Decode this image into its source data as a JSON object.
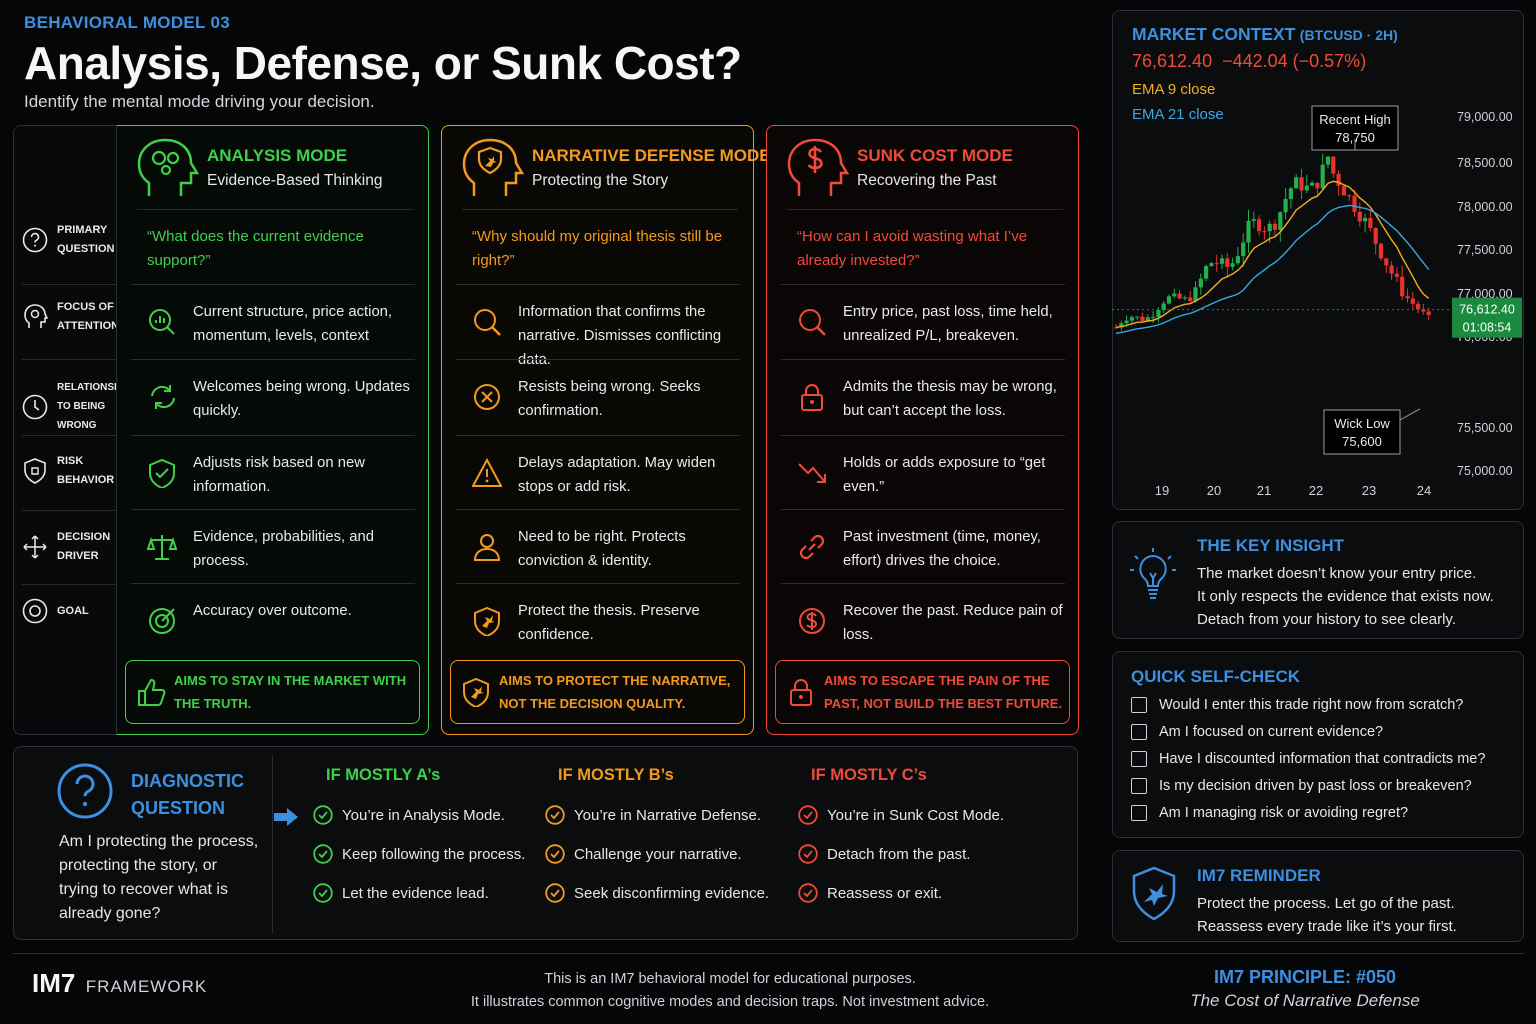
{
  "header": {
    "eyebrow": "BEHAVIORAL MODEL 03",
    "title": "Analysis, Defense, or Sunk Cost?",
    "subtitle": "Identify the mental mode driving your decision."
  },
  "row_labels": [
    {
      "text": "PRIMARY QUESTION",
      "icon": "question-circle-icon"
    },
    {
      "text": "FOCUS OF ATTENTION",
      "icon": "focus-head-icon"
    },
    {
      "text": "RELATIONSHIP TO BEING WRONG",
      "icon": "clock-icon"
    },
    {
      "text": "RISK BEHAVIOR",
      "icon": "shield-icon"
    },
    {
      "text": "DECISION DRIVER",
      "icon": "move-arrows-icon"
    },
    {
      "text": "GOAL",
      "icon": "target-icon"
    }
  ],
  "modes": [
    {
      "title": "ANALYSIS MODE",
      "subtitle": "Evidence-Based Thinking",
      "question": "“What does the current evidence support?”",
      "color": "#3fd04a",
      "rows": [
        "Current structure, price action, momentum, levels, context",
        "Welcomes being wrong. Updates quickly.",
        "Adjusts risk based on new information.",
        "Evidence, probabilities, and process.",
        "Accuracy over outcome."
      ],
      "footer": "AIMS TO STAY IN THE MARKET WITH THE TRUTH."
    },
    {
      "title": "NARRATIVE DEFENSE MODE",
      "subtitle": "Protecting the Story",
      "question": "“Why should my original thesis still be right?”",
      "color": "#f39a1e",
      "rows": [
        "Information that confirms the narrative. Dismisses conflicting data.",
        "Resists being wrong. Seeks confirmation.",
        "Delays adaptation. May widen stops or add risk.",
        "Need to be right. Protects conviction & identity.",
        "Protect the thesis. Preserve confidence."
      ],
      "footer": "AIMS TO PROTECT THE NARRATIVE, NOT THE DECISION QUALITY."
    },
    {
      "title": "SUNK COST MODE",
      "subtitle": "Recovering the Past",
      "question": "“How can I avoid wasting what I’ve already invested?”",
      "color": "#f04a3a",
      "rows": [
        "Entry price, past loss, time held, unrealized P/L, breakeven.",
        "Admits the thesis may be wrong, but can’t accept the loss.",
        "Holds or adds exposure to “get even.”",
        "Past investment (time, money, effort) drives the choice.",
        "Recover the past. Reduce pain of loss."
      ],
      "footer": "AIMS TO ESCAPE THE PAIN OF THE PAST, NOT BUILD THE BEST FUTURE."
    }
  ],
  "diagnostic": {
    "title": "DIAGNOSTIC QUESTION",
    "text": "Am I protecting the process, protecting the story, or trying to recover what is already gone?",
    "results": [
      {
        "title": "IF MOSTLY A’s",
        "items": [
          "You’re in Analysis Mode.",
          "Keep following the process.",
          "Let the evidence lead."
        ]
      },
      {
        "title": "IF MOSTLY B’s",
        "items": [
          "You’re in Narrative Defense.",
          "Challenge your narrative.",
          "Seek disconfirming evidence."
        ]
      },
      {
        "title": "IF MOSTLY C’s",
        "items": [
          "You’re in Sunk Cost Mode.",
          "Detach from the past.",
          "Reassess or exit."
        ]
      }
    ]
  },
  "market": {
    "title": "MARKET CONTEXT",
    "symbol": "(BTCUSD · 2H)",
    "price_line": "76,612.40  −442.04 (−0.57%)",
    "ema9": "EMA 9 close",
    "ema21": "EMA 21 close",
    "recent_high_label": "Recent High",
    "recent_high_value": "78,750",
    "wick_low_label": "Wick Low",
    "wick_low_value": "75,600",
    "price_tag": "76,612.40",
    "timer_tag": "01:08:54",
    "colors": {
      "up": "#22b04a",
      "down": "#e8332c",
      "ema9": "#f2b01e",
      "ema21": "#3aa8e0"
    }
  },
  "chart_data": {
    "type": "candlestick",
    "x_ticks": [
      "19",
      "20",
      "21",
      "22",
      "23",
      "24"
    ],
    "y_ticks": [
      "79,000.00",
      "78,500.00",
      "78,000.00",
      "77,500.00",
      "77,000.00",
      "76,000.00",
      "75,500.00",
      "75,000.00"
    ],
    "ylim": [
      75000,
      79000
    ],
    "last_price": 76612.4,
    "recent_high": 78750,
    "wick_low": 75600,
    "series": [
      {
        "name": "EMA 9 close"
      },
      {
        "name": "EMA 21 close"
      }
    ]
  },
  "insight": {
    "title": "THE KEY INSIGHT",
    "lines": [
      "The market doesn’t know your entry price.",
      "It only respects the evidence that exists now.",
      "Detach from your history to see clearly."
    ]
  },
  "selfcheck": {
    "title": "QUICK SELF-CHECK",
    "items": [
      "Would I enter this trade right now from scratch?",
      "Am I focused on current evidence?",
      "Have I discounted information that contradicts me?",
      "Is my decision driven by past loss or breakeven?",
      "Am I managing risk or avoiding regret?"
    ]
  },
  "reminder": {
    "title": "IM7 REMINDER",
    "lines": [
      "Protect the process. Let go of the past.",
      "Reassess every trade like it’s your first."
    ]
  },
  "footer": {
    "brand": "IM7",
    "brand_suffix": "FRAMEWORK",
    "disclaimer1": "This is an IM7 behavioral model for educational purposes.",
    "disclaimer2": "It illustrates common cognitive modes and decision traps. Not investment advice.",
    "principle": "IM7 PRINCIPLE: #050",
    "principle_sub": "The Cost of Narrative Defense"
  }
}
